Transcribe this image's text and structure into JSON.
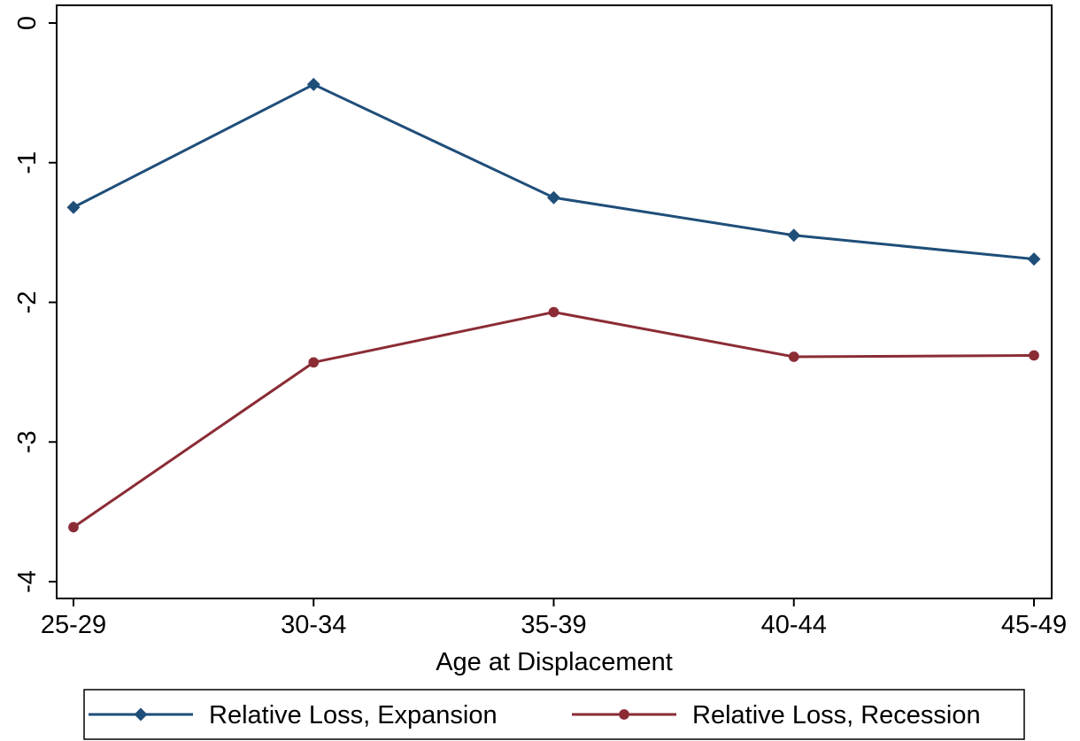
{
  "chart_data": {
    "type": "line",
    "title": "",
    "xlabel": "Age at Displacement",
    "ylabel": "",
    "categories": [
      "25-29",
      "30-34",
      "35-39",
      "40-44",
      "45-49"
    ],
    "ylim": [
      -4,
      0
    ],
    "yticks": [
      0,
      -1,
      -2,
      -3,
      -4
    ],
    "ytick_labels": [
      "0",
      "-1",
      "-2",
      "-3",
      "-4"
    ],
    "grid": false,
    "legend_position": "bottom",
    "series": [
      {
        "name": "Relative Loss, Expansion",
        "values": [
          -1.32,
          -0.44,
          -1.25,
          -1.52,
          -1.69
        ],
        "color": "#1f4e79",
        "marker": "diamond"
      },
      {
        "name": "Relative Loss, Recession",
        "values": [
          -3.61,
          -2.43,
          -2.07,
          -2.39,
          -2.38
        ],
        "color": "#8b2c35",
        "marker": "circle"
      }
    ]
  }
}
